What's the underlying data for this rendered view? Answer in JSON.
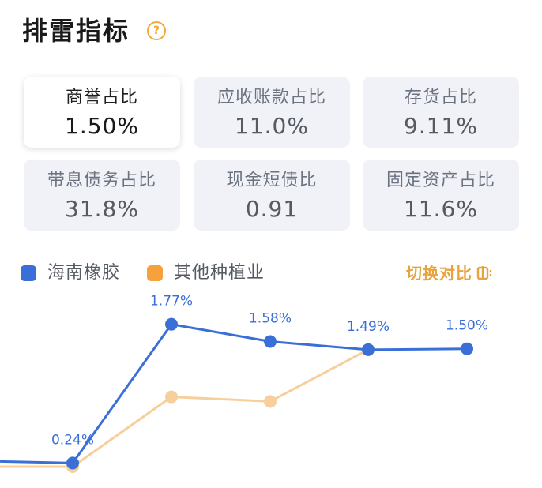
{
  "header": {
    "title": "排雷指标",
    "help_icon": "?"
  },
  "metrics": [
    {
      "label": "商誉占比",
      "value": "1.50%",
      "selected": true
    },
    {
      "label": "应收账款占比",
      "value": "11.0%",
      "selected": false
    },
    {
      "label": "存货占比",
      "value": "9.11%",
      "selected": false
    },
    {
      "label": "带息债务占比",
      "value": "31.8%",
      "selected": false
    },
    {
      "label": "现金短债比",
      "value": "0.91",
      "selected": false
    },
    {
      "label": "固定资产占比",
      "value": "11.6%",
      "selected": false
    }
  ],
  "legend": [
    {
      "name": "海南橡胶",
      "color": "#3a6fd8"
    },
    {
      "name": "其他种植业",
      "color": "#f6a23c"
    }
  ],
  "switch_label": "切换对比",
  "chart_data": {
    "type": "line",
    "x": [
      "",
      "",
      "",
      "",
      ""
    ],
    "series": [
      {
        "name": "海南橡胶",
        "color": "#3a6fd8",
        "values": [
          0.24,
          1.77,
          1.58,
          1.49,
          1.5
        ],
        "labels": [
          "0.24%",
          "1.77%",
          "1.58%",
          "1.49%",
          "1.50%"
        ]
      },
      {
        "name": "其他种植业",
        "color": "#f7cf9c",
        "values": [
          0.2,
          0.97,
          0.92,
          1.49,
          null
        ],
        "labels": []
      }
    ],
    "ylim": [
      0,
      1.95
    ],
    "grid": false
  }
}
